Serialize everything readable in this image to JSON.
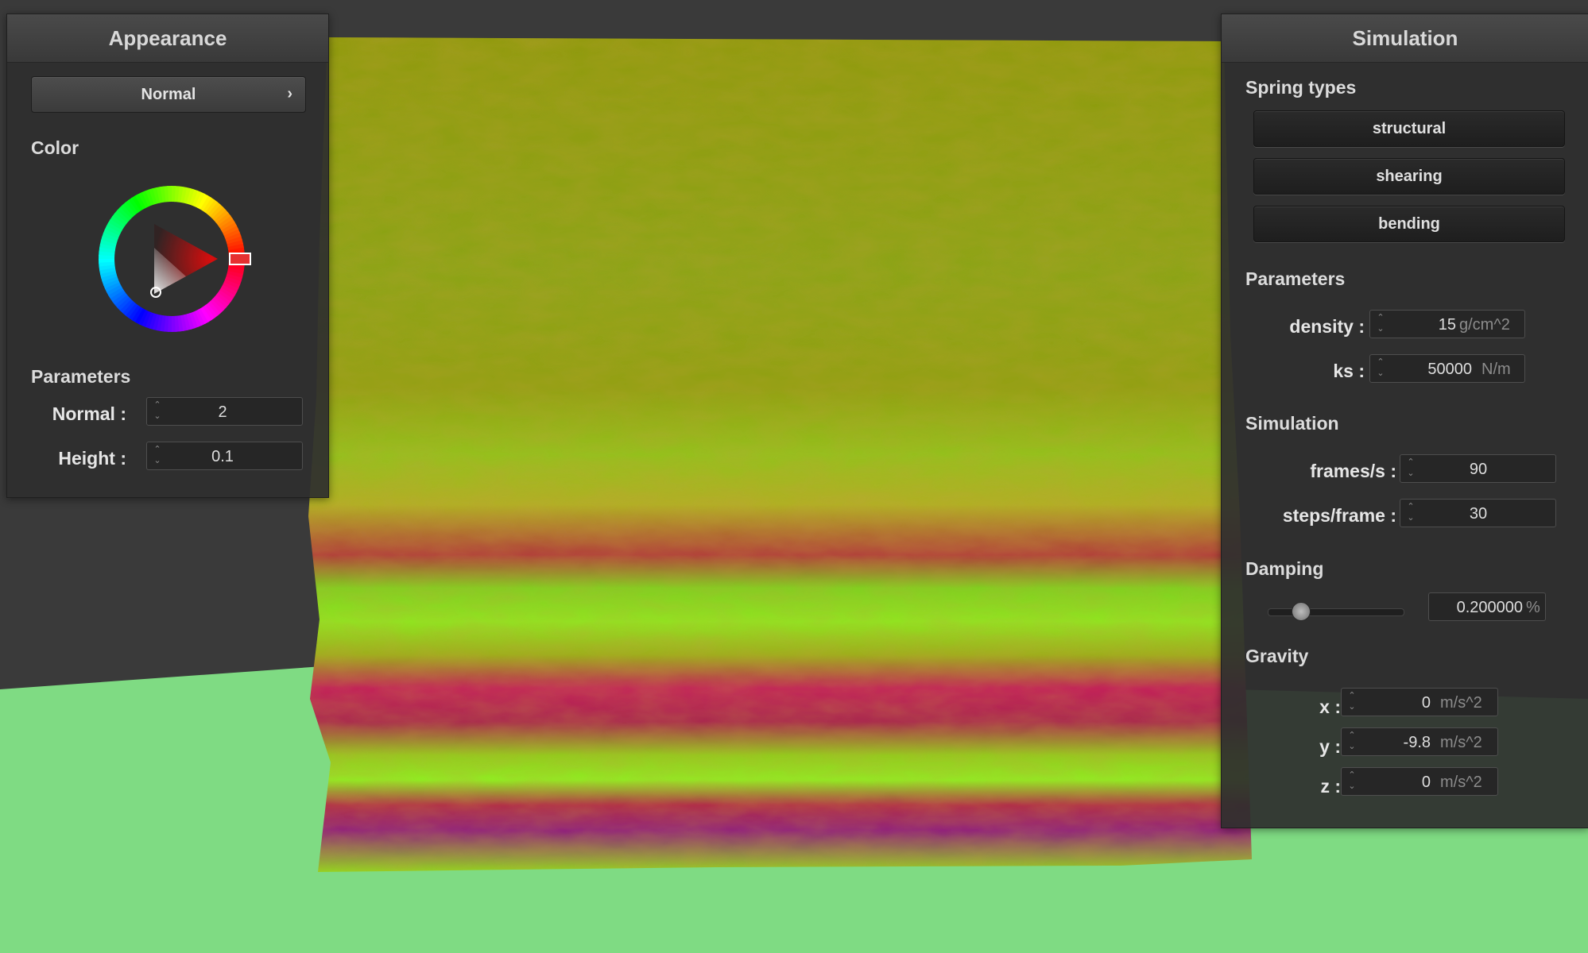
{
  "appearance": {
    "title": "Appearance",
    "mode_button": {
      "label": "Normal",
      "chevron": "chevron-right-icon"
    },
    "color": {
      "title": "Color",
      "selected_hue_hex": "#ff0000"
    },
    "parameters": {
      "title": "Parameters",
      "normal": {
        "label": "Normal :",
        "value": "2"
      },
      "height": {
        "label": "Height :",
        "value": "0.1"
      }
    }
  },
  "simulation": {
    "title": "Simulation",
    "spring_types": {
      "title": "Spring types",
      "buttons": [
        "structural",
        "shearing",
        "bending"
      ]
    },
    "parameters": {
      "title": "Parameters",
      "density": {
        "label": "density :",
        "value": "15",
        "unit": "g/cm^2"
      },
      "ks": {
        "label": "ks :",
        "value": "50000",
        "unit": "N/m"
      }
    },
    "sim": {
      "title": "Simulation",
      "fps": {
        "label": "frames/s :",
        "value": "90"
      },
      "steps": {
        "label": "steps/frame :",
        "value": "30"
      }
    },
    "damping": {
      "title": "Damping",
      "slider_fraction": 0.2,
      "value": "0.200000",
      "unit": "%"
    },
    "gravity": {
      "title": "Gravity",
      "x": {
        "label": "x :",
        "value": "0",
        "unit": "m/s^2"
      },
      "y": {
        "label": "y :",
        "value": "-9.8",
        "unit": "m/s^2"
      },
      "z": {
        "label": "z :",
        "value": "0",
        "unit": "m/s^2"
      }
    }
  },
  "scene": {
    "background_color": "#3a3a3a",
    "floor_color": "#7fdb83",
    "cloth_colors": [
      "#9a9a10",
      "#86b81c",
      "#8ee81e",
      "#c21a5a",
      "#8e1a7e"
    ]
  }
}
